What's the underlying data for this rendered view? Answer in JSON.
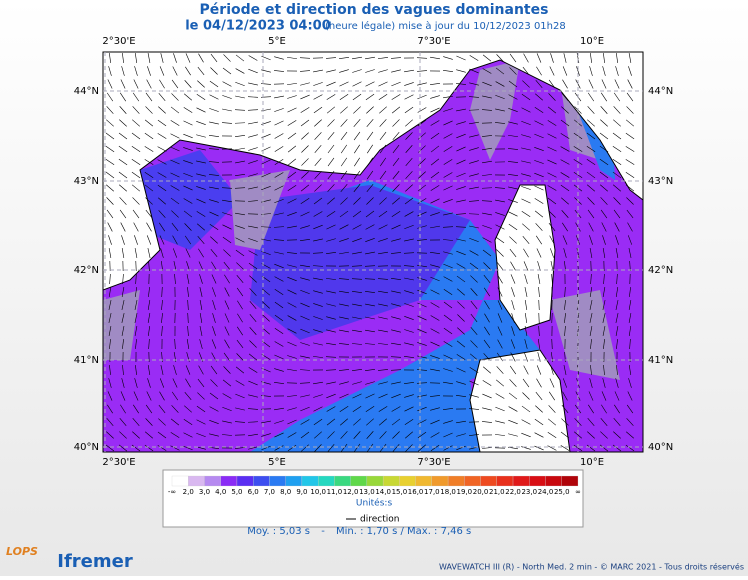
{
  "header": {
    "title": "Période et direction des vagues dominantes",
    "date": "le 04/12/2023 04:00",
    "update": "(heure légale) mise à jour du 10/12/2023 01h28"
  },
  "map": {
    "lon_labels": [
      "2°30'E",
      "5°E",
      "7°30'E",
      "10°E"
    ],
    "lat_labels": [
      "44°N",
      "43°N",
      "42°N",
      "41°N",
      "40°N"
    ]
  },
  "legend": {
    "scale_labels": [
      "-∞",
      "2,0",
      "3,0",
      "4,0",
      "5,0",
      "6,0",
      "7,0",
      "8,0",
      "9,0",
      "10,0",
      "11,0",
      "12,0",
      "13,0",
      "14,0",
      "15,0",
      "16,0",
      "17,0",
      "18,0",
      "19,0",
      "20,0",
      "21,0",
      "22,0",
      "23,0",
      "24,0",
      "25,0",
      "∞"
    ],
    "units": "Unités:s",
    "direction": "direction",
    "mean": "Moy. : 5,03 s",
    "separator": "-",
    "minmax": "Min. : 1,70 s / Max. : 7,46 s"
  },
  "footer": {
    "logo_left": "LOPS",
    "logo_right": "Ifremer",
    "credits": "WAVEWATCH III (R) - North Med. 2 min - © MARC 2021 - Tous droits réservés"
  }
}
